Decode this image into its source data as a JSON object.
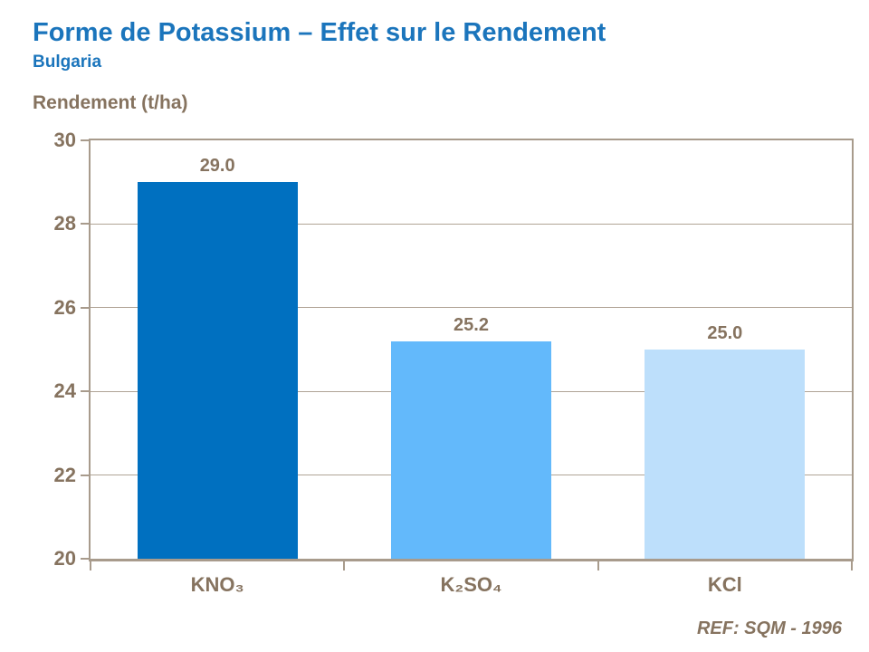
{
  "header": {
    "title": "Forme de Potassium – Effet sur le Rendement",
    "subtitle": "Bulgaria"
  },
  "footer": {
    "reference": "REF: SQM - 1996"
  },
  "colors": {
    "title_blue": "#1B75BC",
    "text_taupe": "#86735F",
    "axis_line": "#A89B8C",
    "gridline": "#B0A496",
    "bar_dark_blue": "#0070C0",
    "bar_medium_blue": "#63B9FB",
    "bar_light_blue": "#BDDFFB"
  },
  "chart_data": {
    "type": "bar",
    "title": "Forme de Potassium – Effet sur le Rendement",
    "subtitle": "Bulgaria",
    "xlabel": "",
    "ylabel": "Rendement (t/ha)",
    "categories": [
      "KNO₃",
      "K₂SO₄",
      "KCl"
    ],
    "values": [
      29.0,
      25.2,
      25.0
    ],
    "value_labels": [
      "29.0",
      "25.2",
      "25.0"
    ],
    "bar_colors": [
      "#0070C0",
      "#63B9FB",
      "#BDDFFB"
    ],
    "ylim": [
      20,
      30
    ],
    "yticks": [
      20,
      22,
      24,
      26,
      28,
      30
    ],
    "grid": true,
    "legend": "none",
    "annotation": "REF: SQM - 1996"
  }
}
